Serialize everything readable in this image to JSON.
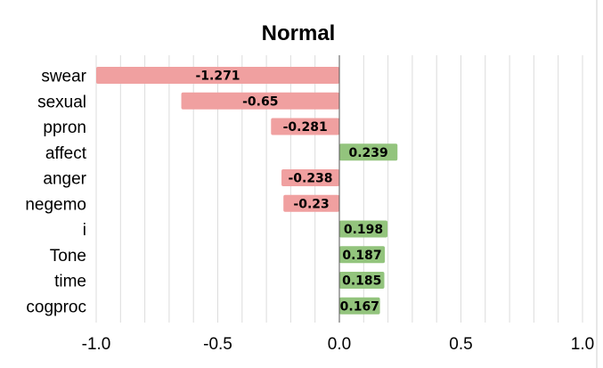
{
  "chart_data": {
    "type": "bar",
    "orientation": "horizontal",
    "title": "Normal",
    "categories": [
      "swear",
      "sexual",
      "ppron",
      "affect",
      "anger",
      "negemo",
      "i",
      "Tone",
      "time",
      "cogproc"
    ],
    "values": [
      -1.271,
      -0.65,
      -0.281,
      0.239,
      -0.238,
      -0.23,
      0.198,
      0.187,
      0.185,
      0.167
    ],
    "value_labels": [
      "-1.271",
      "-0.65",
      "-0.281",
      "0.239",
      "-0.238",
      "-0.23",
      "0.198",
      "0.187",
      "0.185",
      "0.167"
    ],
    "xlim": [
      -1.0,
      1.0
    ],
    "xticks": [
      -1.0,
      -0.5,
      0.0,
      0.5,
      1.0
    ],
    "xtick_labels": [
      "-1.0",
      "-0.5",
      "0.0",
      "0.5",
      "1.0"
    ],
    "xlabel": "",
    "ylabel": "",
    "grid": true,
    "legend": "none",
    "colors": {
      "negative": "#f0a0a0",
      "positive": "#93c47d"
    }
  }
}
